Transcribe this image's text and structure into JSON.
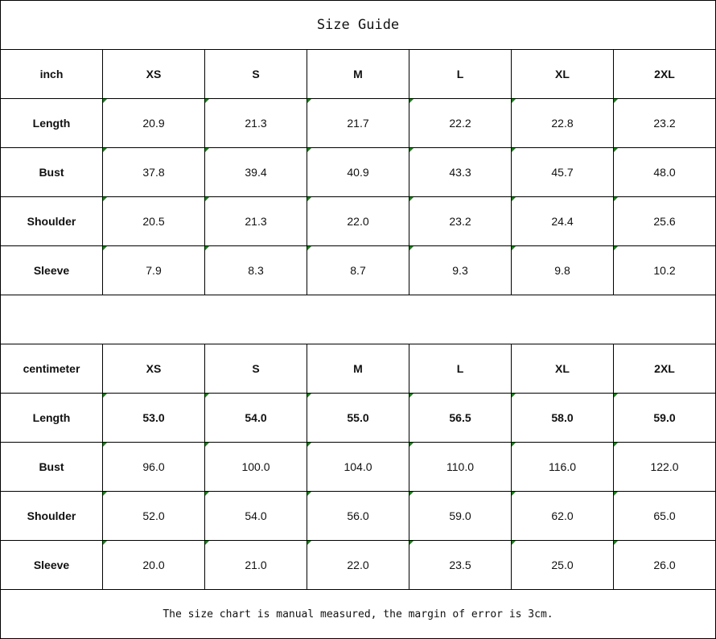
{
  "title": "Size Guide",
  "note": "The size chart is manual measured, the margin of error is 3cm.",
  "sizes": [
    "XS",
    "S",
    "M",
    "L",
    "XL",
    "2XL"
  ],
  "inch": {
    "unit": "inch",
    "rows": [
      {
        "label": "Length",
        "values": [
          "20.9",
          "21.3",
          "21.7",
          "22.2",
          "22.8",
          "23.2"
        ]
      },
      {
        "label": "Bust",
        "values": [
          "37.8",
          "39.4",
          "40.9",
          "43.3",
          "45.7",
          "48.0"
        ]
      },
      {
        "label": "Shoulder",
        "values": [
          "20.5",
          "21.3",
          "22.0",
          "23.2",
          "24.4",
          "25.6"
        ]
      },
      {
        "label": "Sleeve",
        "values": [
          "7.9",
          "8.3",
          "8.7",
          "9.3",
          "9.8",
          "10.2"
        ]
      }
    ]
  },
  "cm": {
    "unit": "centimeter",
    "rows": [
      {
        "label": "Length",
        "values": [
          "53.0",
          "54.0",
          "55.0",
          "56.5",
          "58.0",
          "59.0"
        ]
      },
      {
        "label": "Bust",
        "values": [
          "96.0",
          "100.0",
          "104.0",
          "110.0",
          "116.0",
          "122.0"
        ]
      },
      {
        "label": "Shoulder",
        "values": [
          "52.0",
          "54.0",
          "56.0",
          "59.0",
          "62.0",
          "65.0"
        ]
      },
      {
        "label": "Sleeve",
        "values": [
          "20.0",
          "21.0",
          "22.0",
          "23.5",
          "25.0",
          "26.0"
        ]
      }
    ]
  },
  "marker_color": "#0a8a0a"
}
